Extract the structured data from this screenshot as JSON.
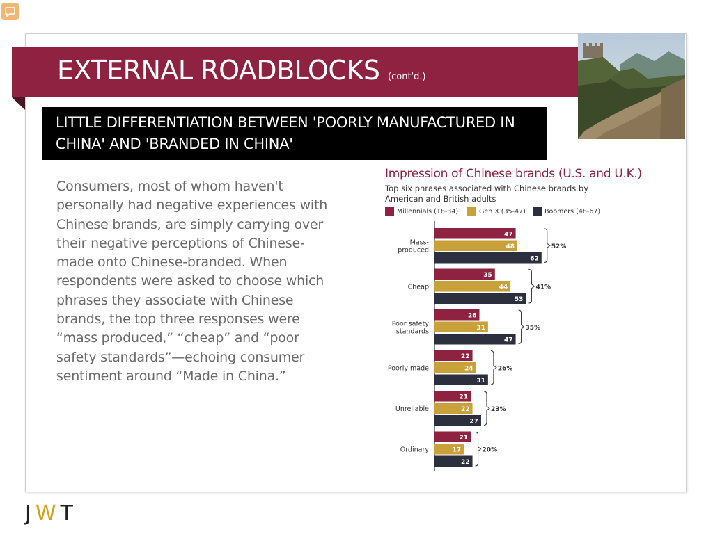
{
  "ui": {
    "notes_icon": "speech-bubble-icon"
  },
  "slide": {
    "title": "EXTERNAL ROADBLOCKS",
    "title_suffix": "(cont'd.)",
    "subheading": "LITTLE DIFFERENTIATION BETWEEN 'POORLY MANUFACTURED IN CHINA' AND 'BRANDED IN CHINA'",
    "body": "Consumers, most of whom haven't personally had negative experiences with Chinese brands, are simply carrying over their negative perceptions of Chinese-made onto Chinese-branded. When respondents were asked to choose which phrases they associate with Chinese brands, the top three responses were “mass produced,” “cheap” and “poor safety standards”—echoing consumer sentiment around “Made in China.”",
    "logo": {
      "j": "J",
      "w": "W",
      "t": "T"
    }
  },
  "colors": {
    "accent": "#8e2240",
    "millennials": "#8e2240",
    "genx": "#c9a13b",
    "boomers": "#2b2f3e"
  },
  "chart_data": {
    "type": "bar",
    "orientation": "horizontal",
    "title": "Impression of Chinese brands (U.S. and U.K.)",
    "subtitle": "Top six phrases associated with Chinese brands by American and British adults",
    "categories": [
      "Mass-produced",
      "Cheap",
      "Poor safety standards",
      "Poorly made",
      "Unreliable",
      "Ordinary"
    ],
    "category_lines": [
      [
        "Mass-",
        "produced"
      ],
      [
        "Cheap"
      ],
      [
        "Poor safety",
        "standards"
      ],
      [
        "Poorly made"
      ],
      [
        "Unreliable"
      ],
      [
        "Ordinary"
      ]
    ],
    "series": [
      {
        "name": "Millennials (18-34)",
        "color": "#8e2240",
        "values": [
          47,
          35,
          26,
          22,
          21,
          21
        ]
      },
      {
        "name": "Gen X (35-47)",
        "color": "#c9a13b",
        "values": [
          48,
          44,
          31,
          24,
          22,
          17
        ]
      },
      {
        "name": "Boomers (48-67)",
        "color": "#2b2f3e",
        "values": [
          62,
          53,
          47,
          31,
          27,
          22
        ]
      }
    ],
    "totals": [
      "52%",
      "41%",
      "35%",
      "26%",
      "23%",
      "20%"
    ],
    "legend": "top",
    "grid": false
  }
}
